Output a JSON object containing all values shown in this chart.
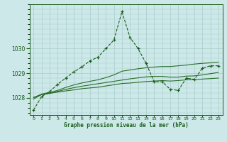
{
  "xlabel": "Graphe pression niveau de la mer (hPa)",
  "background_color": "#cce8e8",
  "grid_color": "#aacccc",
  "line_color_main": "#1a5c1a",
  "line_color_smooth": "#2a6e2a",
  "x_ticks": [
    0,
    1,
    2,
    3,
    4,
    5,
    6,
    7,
    8,
    9,
    10,
    11,
    12,
    13,
    14,
    15,
    16,
    17,
    18,
    19,
    20,
    21,
    22,
    23
  ],
  "ylim": [
    1027.3,
    1031.8
  ],
  "yticks": [
    1028,
    1029,
    1030
  ],
  "series1_x": [
    0,
    1,
    2,
    3,
    4,
    5,
    6,
    7,
    8,
    9,
    10,
    11,
    12,
    13,
    14,
    15,
    16,
    17,
    18,
    19,
    20,
    21,
    22,
    23
  ],
  "series1_y": [
    1027.5,
    1028.05,
    1028.25,
    1028.55,
    1028.8,
    1029.05,
    1029.25,
    1029.5,
    1029.65,
    1030.0,
    1030.35,
    1031.5,
    1030.45,
    1030.0,
    1029.4,
    1028.65,
    1028.65,
    1028.35,
    1028.3,
    1028.8,
    1028.75,
    1029.2,
    1029.3,
    1029.3
  ],
  "series2_x": [
    0,
    1,
    2,
    3,
    4,
    5,
    6,
    7,
    8,
    9,
    10,
    11,
    12,
    13,
    14,
    15,
    16,
    17,
    18,
    19,
    20,
    21,
    22,
    23
  ],
  "series2_y": [
    1028.0,
    1028.15,
    1028.22,
    1028.3,
    1028.42,
    1028.52,
    1028.6,
    1028.67,
    1028.73,
    1028.82,
    1028.93,
    1029.08,
    1029.13,
    1029.18,
    1029.22,
    1029.25,
    1029.27,
    1029.27,
    1029.3,
    1029.33,
    1029.37,
    1029.4,
    1029.42,
    1029.45
  ],
  "series3_x": [
    0,
    1,
    2,
    3,
    4,
    5,
    6,
    7,
    8,
    9,
    10,
    11,
    12,
    13,
    14,
    15,
    16,
    17,
    18,
    19,
    20,
    21,
    22,
    23
  ],
  "series3_y": [
    1027.95,
    1028.13,
    1028.18,
    1028.26,
    1028.34,
    1028.41,
    1028.47,
    1028.52,
    1028.57,
    1028.62,
    1028.67,
    1028.72,
    1028.77,
    1028.81,
    1028.85,
    1028.87,
    1028.87,
    1028.84,
    1028.84,
    1028.88,
    1028.89,
    1028.93,
    1028.98,
    1029.03
  ],
  "series4_x": [
    0,
    1,
    2,
    3,
    4,
    5,
    6,
    7,
    8,
    9,
    10,
    11,
    12,
    13,
    14,
    15,
    16,
    17,
    18,
    19,
    20,
    21,
    22,
    23
  ],
  "series4_y": [
    1028.02,
    1028.13,
    1028.18,
    1028.23,
    1028.28,
    1028.32,
    1028.37,
    1028.4,
    1028.43,
    1028.48,
    1028.53,
    1028.58,
    1028.6,
    1028.63,
    1028.66,
    1028.68,
    1028.7,
    1028.68,
    1028.7,
    1028.73,
    1028.73,
    1028.76,
    1028.78,
    1028.8
  ]
}
